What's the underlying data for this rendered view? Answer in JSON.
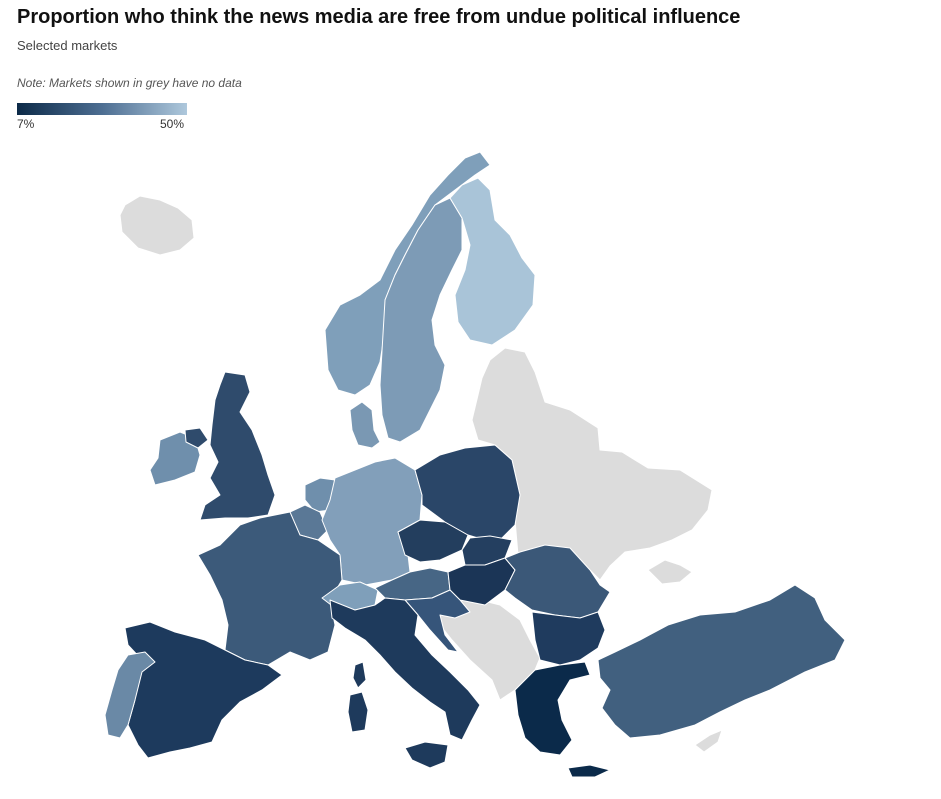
{
  "header": {
    "title": "Proportion who think the news media are free from undue political influence",
    "subtitle": "Selected markets",
    "note": "Note: Markets shown in grey have no data"
  },
  "legend": {
    "min_label": "7%",
    "max_label": "50%",
    "min_value": 7,
    "max_value": 50,
    "color_low": "#0c2a48",
    "color_high": "#aec8dc",
    "no_data_color": "#dcdcdc"
  },
  "map": {
    "region": "Europe",
    "markets": [
      {
        "id": "finland",
        "level": 0.95
      },
      {
        "id": "norway",
        "level": 0.75
      },
      {
        "id": "sweden",
        "level": 0.72
      },
      {
        "id": "denmark",
        "level": 0.7
      },
      {
        "id": "netherlands",
        "level": 0.65
      },
      {
        "id": "switzerland",
        "level": 0.7
      },
      {
        "id": "germany",
        "level": 0.72
      },
      {
        "id": "portugal",
        "level": 0.6
      },
      {
        "id": "ireland",
        "level": 0.58
      },
      {
        "id": "belgium",
        "level": 0.45
      },
      {
        "id": "turkey",
        "level": 0.35
      },
      {
        "id": "austria",
        "level": 0.35
      },
      {
        "id": "romania",
        "level": 0.3
      },
      {
        "id": "france",
        "level": 0.32
      },
      {
        "id": "uk",
        "level": 0.25
      },
      {
        "id": "czechia",
        "level": 0.2
      },
      {
        "id": "poland",
        "level": 0.22
      },
      {
        "id": "slovakia",
        "level": 0.22
      },
      {
        "id": "croatia",
        "level": 0.28
      },
      {
        "id": "spain",
        "level": 0.18
      },
      {
        "id": "italy",
        "level": 0.15
      },
      {
        "id": "hungary",
        "level": 0.15
      },
      {
        "id": "bulgaria",
        "level": 0.12
      },
      {
        "id": "greece",
        "level": 0.0
      }
    ]
  }
}
